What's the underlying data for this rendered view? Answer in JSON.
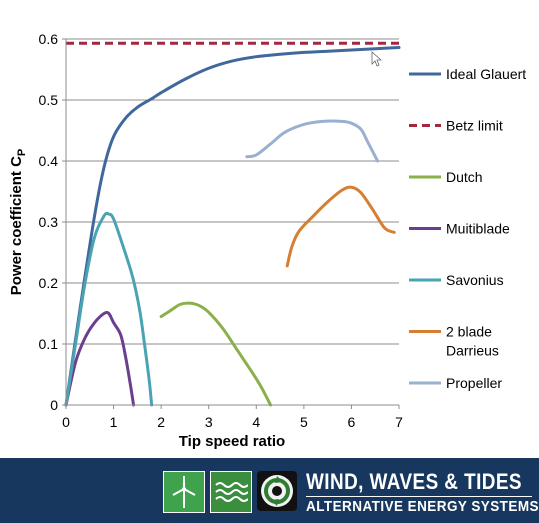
{
  "chart_data": {
    "type": "line",
    "title": "",
    "xlabel": "Tip speed ratio",
    "ylabel_main": "Power coefficient C",
    "ylabel_subscript": "P",
    "xlim": [
      0,
      7
    ],
    "ylim": [
      0,
      0.6
    ],
    "x_ticks": [
      "0",
      "1",
      "2",
      "3",
      "4",
      "5",
      "6",
      "7"
    ],
    "y_ticks": [
      "0",
      "0.1",
      "0.2",
      "0.3",
      "0.4",
      "0.5",
      "0.6"
    ],
    "grid": "horizontal",
    "legend_position": "right",
    "series": [
      {
        "name": "Ideal Glauert",
        "color": "#41689c",
        "dash": false,
        "points": [
          [
            0,
            0
          ],
          [
            0.3,
            0.16
          ],
          [
            0.6,
            0.31
          ],
          [
            0.8,
            0.39
          ],
          [
            1.0,
            0.44
          ],
          [
            1.25,
            0.47
          ],
          [
            1.5,
            0.488
          ],
          [
            1.8,
            0.502
          ],
          [
            2.0,
            0.512
          ],
          [
            2.5,
            0.534
          ],
          [
            3.0,
            0.552
          ],
          [
            3.5,
            0.564
          ],
          [
            4.0,
            0.571
          ],
          [
            4.5,
            0.575
          ],
          [
            5.0,
            0.578
          ],
          [
            5.5,
            0.58
          ],
          [
            6.0,
            0.582
          ],
          [
            6.5,
            0.584
          ],
          [
            7.0,
            0.586
          ]
        ]
      },
      {
        "name": "Betz limit",
        "color": "#a3283f",
        "dash": true,
        "points": [
          [
            0,
            0.593
          ],
          [
            7,
            0.593
          ]
        ]
      },
      {
        "name": "Dutch",
        "color": "#8ab04a",
        "dash": false,
        "points": [
          [
            2.0,
            0.145
          ],
          [
            2.2,
            0.155
          ],
          [
            2.4,
            0.165
          ],
          [
            2.6,
            0.167
          ],
          [
            2.8,
            0.163
          ],
          [
            3.0,
            0.152
          ],
          [
            3.3,
            0.125
          ],
          [
            3.6,
            0.09
          ],
          [
            3.9,
            0.055
          ],
          [
            4.1,
            0.03
          ],
          [
            4.3,
            0.0
          ]
        ]
      },
      {
        "name": "Muitiblade",
        "color": "#6b3f8e",
        "dash": false,
        "points": [
          [
            0,
            0
          ],
          [
            0.2,
            0.07
          ],
          [
            0.4,
            0.11
          ],
          [
            0.6,
            0.135
          ],
          [
            0.8,
            0.15
          ],
          [
            0.9,
            0.15
          ],
          [
            1.0,
            0.135
          ],
          [
            1.15,
            0.115
          ],
          [
            1.25,
            0.08
          ],
          [
            1.35,
            0.035
          ],
          [
            1.42,
            0.0
          ]
        ]
      },
      {
        "name": "Savonius",
        "color": "#4aa3b3",
        "dash": false,
        "points": [
          [
            0,
            0
          ],
          [
            0.2,
            0.1
          ],
          [
            0.4,
            0.2
          ],
          [
            0.6,
            0.275
          ],
          [
            0.8,
            0.31
          ],
          [
            0.9,
            0.313
          ],
          [
            1.0,
            0.305
          ],
          [
            1.2,
            0.26
          ],
          [
            1.4,
            0.21
          ],
          [
            1.55,
            0.155
          ],
          [
            1.65,
            0.1
          ],
          [
            1.75,
            0.04
          ],
          [
            1.8,
            0.0
          ]
        ]
      },
      {
        "name": "2 blade Darrieus",
        "name_line2": "Darrieus",
        "name_line1": "2 blade",
        "color": "#d57f33",
        "dash": false,
        "points": [
          [
            4.65,
            0.228
          ],
          [
            4.75,
            0.26
          ],
          [
            4.9,
            0.285
          ],
          [
            5.2,
            0.31
          ],
          [
            5.5,
            0.333
          ],
          [
            5.8,
            0.352
          ],
          [
            6.0,
            0.357
          ],
          [
            6.2,
            0.348
          ],
          [
            6.45,
            0.32
          ],
          [
            6.7,
            0.29
          ],
          [
            6.9,
            0.283
          ]
        ]
      },
      {
        "name": "Propeller",
        "color": "#9ab0d0",
        "dash": false,
        "points": [
          [
            3.8,
            0.407
          ],
          [
            4.0,
            0.41
          ],
          [
            4.3,
            0.428
          ],
          [
            4.6,
            0.447
          ],
          [
            5.0,
            0.46
          ],
          [
            5.4,
            0.465
          ],
          [
            5.8,
            0.465
          ],
          [
            6.0,
            0.462
          ],
          [
            6.2,
            0.452
          ],
          [
            6.35,
            0.43
          ],
          [
            6.55,
            0.4
          ]
        ]
      }
    ]
  },
  "banner": {
    "title": "WIND, WAVES & TIDES",
    "subtitle": "ALTERNATIVE ENERGY SYSTEMS",
    "logos": [
      "wind-turbine-icon",
      "waves-icon",
      "tide-cycle-icon"
    ]
  }
}
